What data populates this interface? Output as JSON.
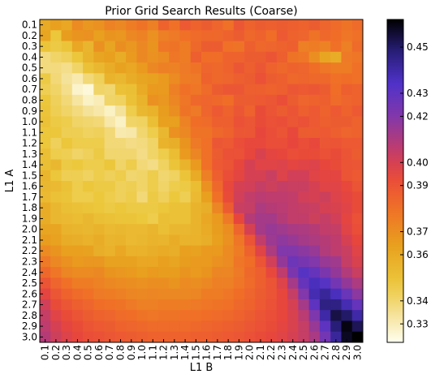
{
  "chart_data": {
    "type": "heatmap",
    "title": "Prior Grid Search Results (Coarse)",
    "xlabel": "L1 B",
    "ylabel": "L1 A",
    "x_ticks": [
      "0.1",
      "0.2",
      "0.3",
      "0.4",
      "0.5",
      "0.6",
      "0.7",
      "0.8",
      "0.9",
      "1.0",
      "1.1",
      "1.2",
      "1.3",
      "1.4",
      "1.5",
      "1.6",
      "1.7",
      "1.8",
      "1.9",
      "2.0",
      "2.1",
      "2.2",
      "2.3",
      "2.4",
      "2.5",
      "2.6",
      "2.7",
      "2.8",
      "2.9",
      "3.0"
    ],
    "y_ticks": [
      "0.1",
      "0.2",
      "0.3",
      "0.4",
      "0.5",
      "0.6",
      "0.7",
      "0.8",
      "0.9",
      "1.0",
      "1.1",
      "1.2",
      "1.3",
      "1.4",
      "1.5",
      "1.6",
      "1.7",
      "1.8",
      "1.9",
      "2.0",
      "2.1",
      "2.2",
      "2.3",
      "2.4",
      "2.5",
      "2.6",
      "2.7",
      "2.8",
      "2.9",
      "3.0"
    ],
    "colorbar": {
      "ticks": [
        0.33,
        0.34,
        0.36,
        0.37,
        0.39,
        0.4,
        0.42,
        0.43,
        0.45
      ],
      "tick_labels": [
        "0.33",
        "0.34",
        "0.36",
        "0.37",
        "0.39",
        "0.40",
        "0.42",
        "0.43",
        "0.45"
      ],
      "range": [
        0.322,
        0.462
      ]
    },
    "colormap": "CMRmap_r",
    "grid": false,
    "values": [
      [
        0.36,
        0.364,
        0.361,
        0.371,
        0.367,
        0.369,
        0.374,
        0.372,
        0.376,
        0.379,
        0.375,
        0.385,
        0.38,
        0.388,
        0.385,
        0.387,
        0.384,
        0.38,
        0.389,
        0.385,
        0.387,
        0.386,
        0.387,
        0.386,
        0.385,
        0.387,
        0.384,
        0.382,
        0.379,
        0.382
      ],
      [
        0.362,
        0.348,
        0.365,
        0.368,
        0.369,
        0.364,
        0.368,
        0.367,
        0.372,
        0.374,
        0.369,
        0.375,
        0.377,
        0.38,
        0.382,
        0.383,
        0.383,
        0.385,
        0.387,
        0.383,
        0.385,
        0.381,
        0.388,
        0.385,
        0.384,
        0.379,
        0.383,
        0.381,
        0.378,
        0.38
      ],
      [
        0.349,
        0.346,
        0.349,
        0.361,
        0.355,
        0.369,
        0.362,
        0.37,
        0.367,
        0.372,
        0.368,
        0.378,
        0.379,
        0.376,
        0.383,
        0.387,
        0.387,
        0.38,
        0.379,
        0.386,
        0.383,
        0.384,
        0.385,
        0.386,
        0.375,
        0.376,
        0.374,
        0.38,
        0.375,
        0.382
      ],
      [
        0.338,
        0.341,
        0.343,
        0.348,
        0.356,
        0.362,
        0.364,
        0.359,
        0.366,
        0.372,
        0.369,
        0.371,
        0.378,
        0.376,
        0.386,
        0.381,
        0.381,
        0.385,
        0.385,
        0.387,
        0.387,
        0.39,
        0.386,
        0.379,
        0.378,
        0.37,
        0.362,
        0.359,
        0.377,
        0.378
      ],
      [
        0.338,
        0.338,
        0.336,
        0.341,
        0.35,
        0.354,
        0.359,
        0.363,
        0.361,
        0.366,
        0.372,
        0.375,
        0.374,
        0.377,
        0.379,
        0.384,
        0.383,
        0.385,
        0.389,
        0.386,
        0.389,
        0.385,
        0.383,
        0.385,
        0.384,
        0.381,
        0.378,
        0.376,
        0.376,
        0.38
      ],
      [
        0.346,
        0.339,
        0.334,
        0.331,
        0.339,
        0.343,
        0.356,
        0.354,
        0.359,
        0.362,
        0.363,
        0.366,
        0.371,
        0.376,
        0.377,
        0.385,
        0.383,
        0.384,
        0.386,
        0.387,
        0.391,
        0.387,
        0.386,
        0.383,
        0.384,
        0.383,
        0.383,
        0.38,
        0.381,
        0.38
      ],
      [
        0.344,
        0.341,
        0.336,
        0.327,
        0.325,
        0.341,
        0.34,
        0.35,
        0.351,
        0.36,
        0.366,
        0.366,
        0.375,
        0.38,
        0.378,
        0.382,
        0.387,
        0.389,
        0.389,
        0.386,
        0.386,
        0.385,
        0.386,
        0.389,
        0.388,
        0.389,
        0.387,
        0.381,
        0.386,
        0.385
      ],
      [
        0.348,
        0.343,
        0.339,
        0.333,
        0.328,
        0.33,
        0.341,
        0.342,
        0.35,
        0.356,
        0.369,
        0.367,
        0.373,
        0.378,
        0.383,
        0.384,
        0.383,
        0.381,
        0.387,
        0.387,
        0.388,
        0.389,
        0.392,
        0.387,
        0.384,
        0.385,
        0.386,
        0.382,
        0.384,
        0.385
      ],
      [
        0.349,
        0.344,
        0.341,
        0.338,
        0.334,
        0.332,
        0.328,
        0.334,
        0.345,
        0.354,
        0.357,
        0.365,
        0.37,
        0.379,
        0.377,
        0.384,
        0.388,
        0.385,
        0.389,
        0.385,
        0.393,
        0.39,
        0.387,
        0.39,
        0.386,
        0.388,
        0.385,
        0.388,
        0.385,
        0.388
      ],
      [
        0.35,
        0.346,
        0.345,
        0.341,
        0.34,
        0.339,
        0.332,
        0.328,
        0.341,
        0.342,
        0.351,
        0.364,
        0.364,
        0.374,
        0.381,
        0.382,
        0.386,
        0.386,
        0.391,
        0.389,
        0.393,
        0.391,
        0.392,
        0.389,
        0.391,
        0.388,
        0.386,
        0.387,
        0.387,
        0.385
      ],
      [
        0.348,
        0.348,
        0.344,
        0.344,
        0.342,
        0.343,
        0.339,
        0.331,
        0.332,
        0.34,
        0.345,
        0.354,
        0.369,
        0.372,
        0.379,
        0.379,
        0.383,
        0.385,
        0.389,
        0.389,
        0.395,
        0.392,
        0.39,
        0.394,
        0.387,
        0.387,
        0.388,
        0.386,
        0.384,
        0.385
      ],
      [
        0.348,
        0.343,
        0.348,
        0.345,
        0.345,
        0.345,
        0.339,
        0.339,
        0.337,
        0.338,
        0.341,
        0.356,
        0.358,
        0.368,
        0.377,
        0.38,
        0.389,
        0.388,
        0.392,
        0.394,
        0.394,
        0.392,
        0.392,
        0.395,
        0.392,
        0.394,
        0.389,
        0.39,
        0.388,
        0.388
      ],
      [
        0.351,
        0.345,
        0.344,
        0.341,
        0.343,
        0.346,
        0.34,
        0.34,
        0.34,
        0.337,
        0.341,
        0.345,
        0.352,
        0.366,
        0.373,
        0.38,
        0.387,
        0.391,
        0.391,
        0.395,
        0.399,
        0.396,
        0.395,
        0.392,
        0.393,
        0.393,
        0.391,
        0.393,
        0.39,
        0.387
      ],
      [
        0.351,
        0.354,
        0.346,
        0.347,
        0.345,
        0.345,
        0.348,
        0.341,
        0.345,
        0.339,
        0.337,
        0.342,
        0.349,
        0.356,
        0.366,
        0.38,
        0.388,
        0.39,
        0.395,
        0.4,
        0.397,
        0.397,
        0.398,
        0.396,
        0.397,
        0.398,
        0.395,
        0.393,
        0.39,
        0.389
      ],
      [
        0.355,
        0.348,
        0.344,
        0.344,
        0.342,
        0.345,
        0.343,
        0.345,
        0.34,
        0.341,
        0.345,
        0.34,
        0.342,
        0.349,
        0.36,
        0.375,
        0.386,
        0.392,
        0.396,
        0.4,
        0.4,
        0.403,
        0.398,
        0.401,
        0.401,
        0.397,
        0.396,
        0.396,
        0.39,
        0.388
      ],
      [
        0.354,
        0.353,
        0.35,
        0.345,
        0.348,
        0.346,
        0.346,
        0.343,
        0.344,
        0.341,
        0.345,
        0.341,
        0.345,
        0.346,
        0.352,
        0.369,
        0.383,
        0.394,
        0.4,
        0.401,
        0.404,
        0.402,
        0.404,
        0.403,
        0.403,
        0.4,
        0.397,
        0.397,
        0.394,
        0.39
      ],
      [
        0.353,
        0.35,
        0.349,
        0.345,
        0.345,
        0.347,
        0.345,
        0.343,
        0.345,
        0.339,
        0.346,
        0.343,
        0.347,
        0.344,
        0.353,
        0.364,
        0.38,
        0.393,
        0.401,
        0.405,
        0.407,
        0.406,
        0.406,
        0.405,
        0.401,
        0.4,
        0.402,
        0.398,
        0.396,
        0.393
      ],
      [
        0.359,
        0.354,
        0.351,
        0.35,
        0.349,
        0.348,
        0.346,
        0.348,
        0.346,
        0.346,
        0.346,
        0.348,
        0.35,
        0.35,
        0.356,
        0.358,
        0.373,
        0.387,
        0.403,
        0.404,
        0.41,
        0.408,
        0.407,
        0.405,
        0.404,
        0.403,
        0.4,
        0.399,
        0.397,
        0.393
      ],
      [
        0.359,
        0.354,
        0.353,
        0.352,
        0.354,
        0.351,
        0.35,
        0.349,
        0.349,
        0.347,
        0.345,
        0.351,
        0.35,
        0.35,
        0.356,
        0.361,
        0.366,
        0.377,
        0.395,
        0.408,
        0.412,
        0.412,
        0.408,
        0.405,
        0.405,
        0.402,
        0.404,
        0.401,
        0.396,
        0.391
      ],
      [
        0.362,
        0.362,
        0.356,
        0.355,
        0.354,
        0.356,
        0.353,
        0.354,
        0.353,
        0.353,
        0.355,
        0.351,
        0.354,
        0.354,
        0.356,
        0.36,
        0.365,
        0.37,
        0.384,
        0.4,
        0.412,
        0.415,
        0.413,
        0.411,
        0.41,
        0.408,
        0.405,
        0.404,
        0.397,
        0.392
      ],
      [
        0.365,
        0.363,
        0.359,
        0.358,
        0.357,
        0.359,
        0.355,
        0.356,
        0.353,
        0.354,
        0.356,
        0.355,
        0.359,
        0.356,
        0.357,
        0.358,
        0.364,
        0.369,
        0.378,
        0.39,
        0.405,
        0.414,
        0.417,
        0.415,
        0.412,
        0.41,
        0.408,
        0.406,
        0.4,
        0.395
      ],
      [
        0.371,
        0.368,
        0.364,
        0.364,
        0.363,
        0.358,
        0.357,
        0.361,
        0.357,
        0.357,
        0.358,
        0.36,
        0.358,
        0.364,
        0.363,
        0.366,
        0.366,
        0.371,
        0.376,
        0.385,
        0.397,
        0.41,
        0.42,
        0.42,
        0.418,
        0.415,
        0.409,
        0.406,
        0.403,
        0.397
      ],
      [
        0.377,
        0.372,
        0.369,
        0.366,
        0.367,
        0.367,
        0.363,
        0.363,
        0.363,
        0.361,
        0.361,
        0.364,
        0.362,
        0.365,
        0.366,
        0.366,
        0.369,
        0.371,
        0.378,
        0.381,
        0.39,
        0.401,
        0.416,
        0.426,
        0.423,
        0.42,
        0.415,
        0.413,
        0.404,
        0.399
      ],
      [
        0.383,
        0.378,
        0.373,
        0.371,
        0.371,
        0.372,
        0.368,
        0.367,
        0.366,
        0.364,
        0.366,
        0.365,
        0.365,
        0.368,
        0.366,
        0.368,
        0.373,
        0.373,
        0.377,
        0.383,
        0.386,
        0.394,
        0.406,
        0.422,
        0.432,
        0.428,
        0.422,
        0.416,
        0.409,
        0.403
      ],
      [
        0.39,
        0.384,
        0.38,
        0.376,
        0.376,
        0.374,
        0.372,
        0.371,
        0.37,
        0.369,
        0.37,
        0.37,
        0.368,
        0.371,
        0.37,
        0.372,
        0.375,
        0.375,
        0.378,
        0.382,
        0.386,
        0.39,
        0.398,
        0.412,
        0.428,
        0.436,
        0.432,
        0.424,
        0.416,
        0.41
      ],
      [
        0.396,
        0.389,
        0.385,
        0.382,
        0.38,
        0.377,
        0.376,
        0.375,
        0.373,
        0.372,
        0.373,
        0.372,
        0.372,
        0.372,
        0.373,
        0.376,
        0.376,
        0.378,
        0.381,
        0.384,
        0.387,
        0.39,
        0.395,
        0.404,
        0.42,
        0.438,
        0.442,
        0.436,
        0.427,
        0.418
      ],
      [
        0.401,
        0.393,
        0.389,
        0.386,
        0.384,
        0.381,
        0.38,
        0.379,
        0.377,
        0.375,
        0.375,
        0.376,
        0.376,
        0.376,
        0.377,
        0.378,
        0.379,
        0.38,
        0.383,
        0.385,
        0.388,
        0.391,
        0.395,
        0.4,
        0.412,
        0.43,
        0.446,
        0.446,
        0.438,
        0.428
      ],
      [
        0.404,
        0.397,
        0.393,
        0.39,
        0.387,
        0.385,
        0.384,
        0.382,
        0.381,
        0.379,
        0.378,
        0.379,
        0.379,
        0.38,
        0.38,
        0.381,
        0.382,
        0.383,
        0.385,
        0.387,
        0.39,
        0.392,
        0.395,
        0.399,
        0.407,
        0.421,
        0.44,
        0.454,
        0.45,
        0.44
      ],
      [
        0.406,
        0.4,
        0.396,
        0.393,
        0.39,
        0.388,
        0.387,
        0.385,
        0.384,
        0.383,
        0.382,
        0.382,
        0.382,
        0.382,
        0.383,
        0.384,
        0.385,
        0.386,
        0.387,
        0.389,
        0.391,
        0.393,
        0.396,
        0.399,
        0.404,
        0.415,
        0.43,
        0.448,
        0.46,
        0.452
      ],
      [
        0.408,
        0.402,
        0.398,
        0.395,
        0.392,
        0.391,
        0.389,
        0.388,
        0.387,
        0.386,
        0.385,
        0.385,
        0.385,
        0.385,
        0.386,
        0.386,
        0.387,
        0.388,
        0.389,
        0.391,
        0.393,
        0.395,
        0.397,
        0.4,
        0.404,
        0.411,
        0.424,
        0.442,
        0.458,
        0.462
      ]
    ]
  }
}
